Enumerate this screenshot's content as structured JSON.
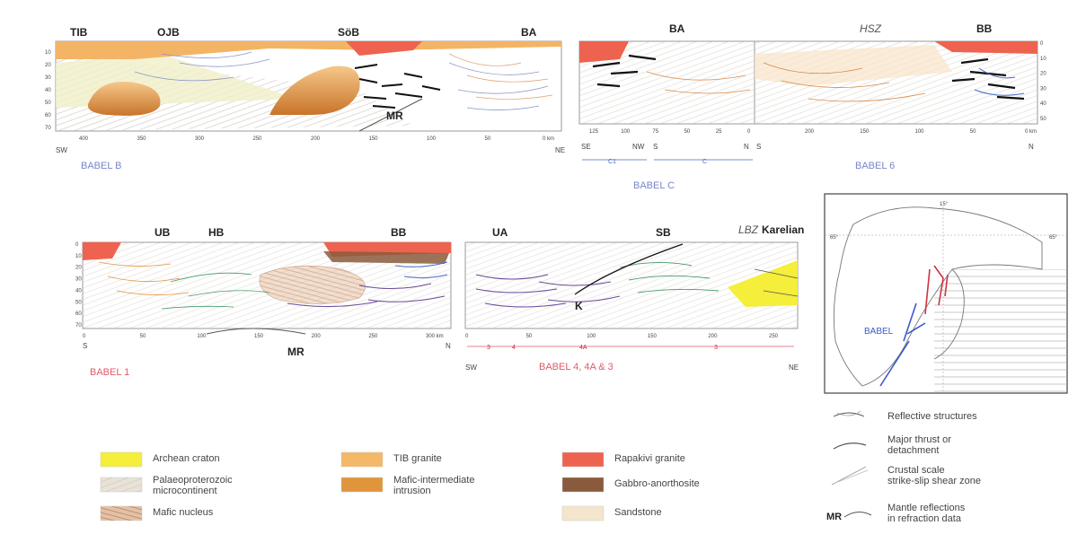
{
  "sections": {
    "babel_b": {
      "labels": [
        "TIB",
        "OJB",
        "SöB",
        "BA"
      ],
      "mr": "MR",
      "depth_ticks": [
        "10",
        "20",
        "30",
        "40",
        "50",
        "60",
        "70"
      ],
      "dist_ticks": [
        "400",
        "350",
        "300",
        "250",
        "200",
        "150",
        "100",
        "50",
        "0 km"
      ],
      "sw": "SW",
      "ne": "NE",
      "name": "BABEL B"
    },
    "babel_c6": {
      "labels": [
        "BA",
        "BB"
      ],
      "hsz": "HSZ",
      "depth_ticks": [
        "0",
        "10",
        "20",
        "30",
        "40",
        "50"
      ],
      "dist_ticks_c": [
        "125",
        "100",
        "75",
        "50",
        "25",
        "0"
      ],
      "dist_ticks_6": [
        "200",
        "150",
        "100",
        "50",
        "0 km"
      ],
      "dirs": [
        "SE",
        "NW",
        "S",
        "N",
        "S",
        "N"
      ],
      "sub_c1": "C1",
      "sub_c": "C",
      "name_c": "BABEL C",
      "name_6": "BABEL 6"
    },
    "babel_1": {
      "labels": [
        "UB",
        "HB",
        "BB"
      ],
      "mr": "MR",
      "depth_ticks": [
        "0",
        "10",
        "20",
        "30",
        "40",
        "50",
        "60",
        "70"
      ],
      "dist_ticks": [
        "0",
        "50",
        "100",
        "150",
        "200",
        "250",
        "300 km"
      ],
      "s": "S",
      "n": "N",
      "name": "BABEL 1"
    },
    "babel_4": {
      "labels": [
        "UA",
        "SB",
        "Karelian"
      ],
      "lbz": "LBZ",
      "k": "K",
      "dist_ticks": [
        "0",
        "50",
        "100",
        "150",
        "200",
        "250"
      ],
      "subs": [
        "3",
        "4",
        "4A",
        "3"
      ],
      "sw": "SW",
      "ne": "NE",
      "name": "BABEL 4, 4A & 3"
    }
  },
  "map": {
    "lon_top": "15°",
    "lat_left": "65°",
    "lat_right": "65°",
    "label": "BABEL"
  },
  "legend": {
    "items": [
      {
        "label": "Archean craton",
        "color": "#f5ee3a"
      },
      {
        "label": "Palaeoproterozoic microcontinent",
        "color": "#e8e2d8"
      },
      {
        "label": "Mafic nucleus",
        "color": "#e4c1a6"
      },
      {
        "label": "TIB granite",
        "color": "#f3b868"
      },
      {
        "label": "Mafic-intermediate intrusion",
        "color": "#e0953c"
      },
      {
        "label": "Rapakivi granite",
        "color": "#ee6350"
      },
      {
        "label": "Gabbro-anorthosite",
        "color": "#8a5a3c"
      },
      {
        "label": "Sandstone",
        "color": "#f4e6cc"
      }
    ],
    "lines": [
      {
        "label": "Reflective structures"
      },
      {
        "label": "Major thrust or detachment"
      },
      {
        "label": "Crustal scale strike-slip shear zone"
      },
      {
        "label": "Mantle reflections in refraction data",
        "prefix": "MR"
      }
    ]
  }
}
